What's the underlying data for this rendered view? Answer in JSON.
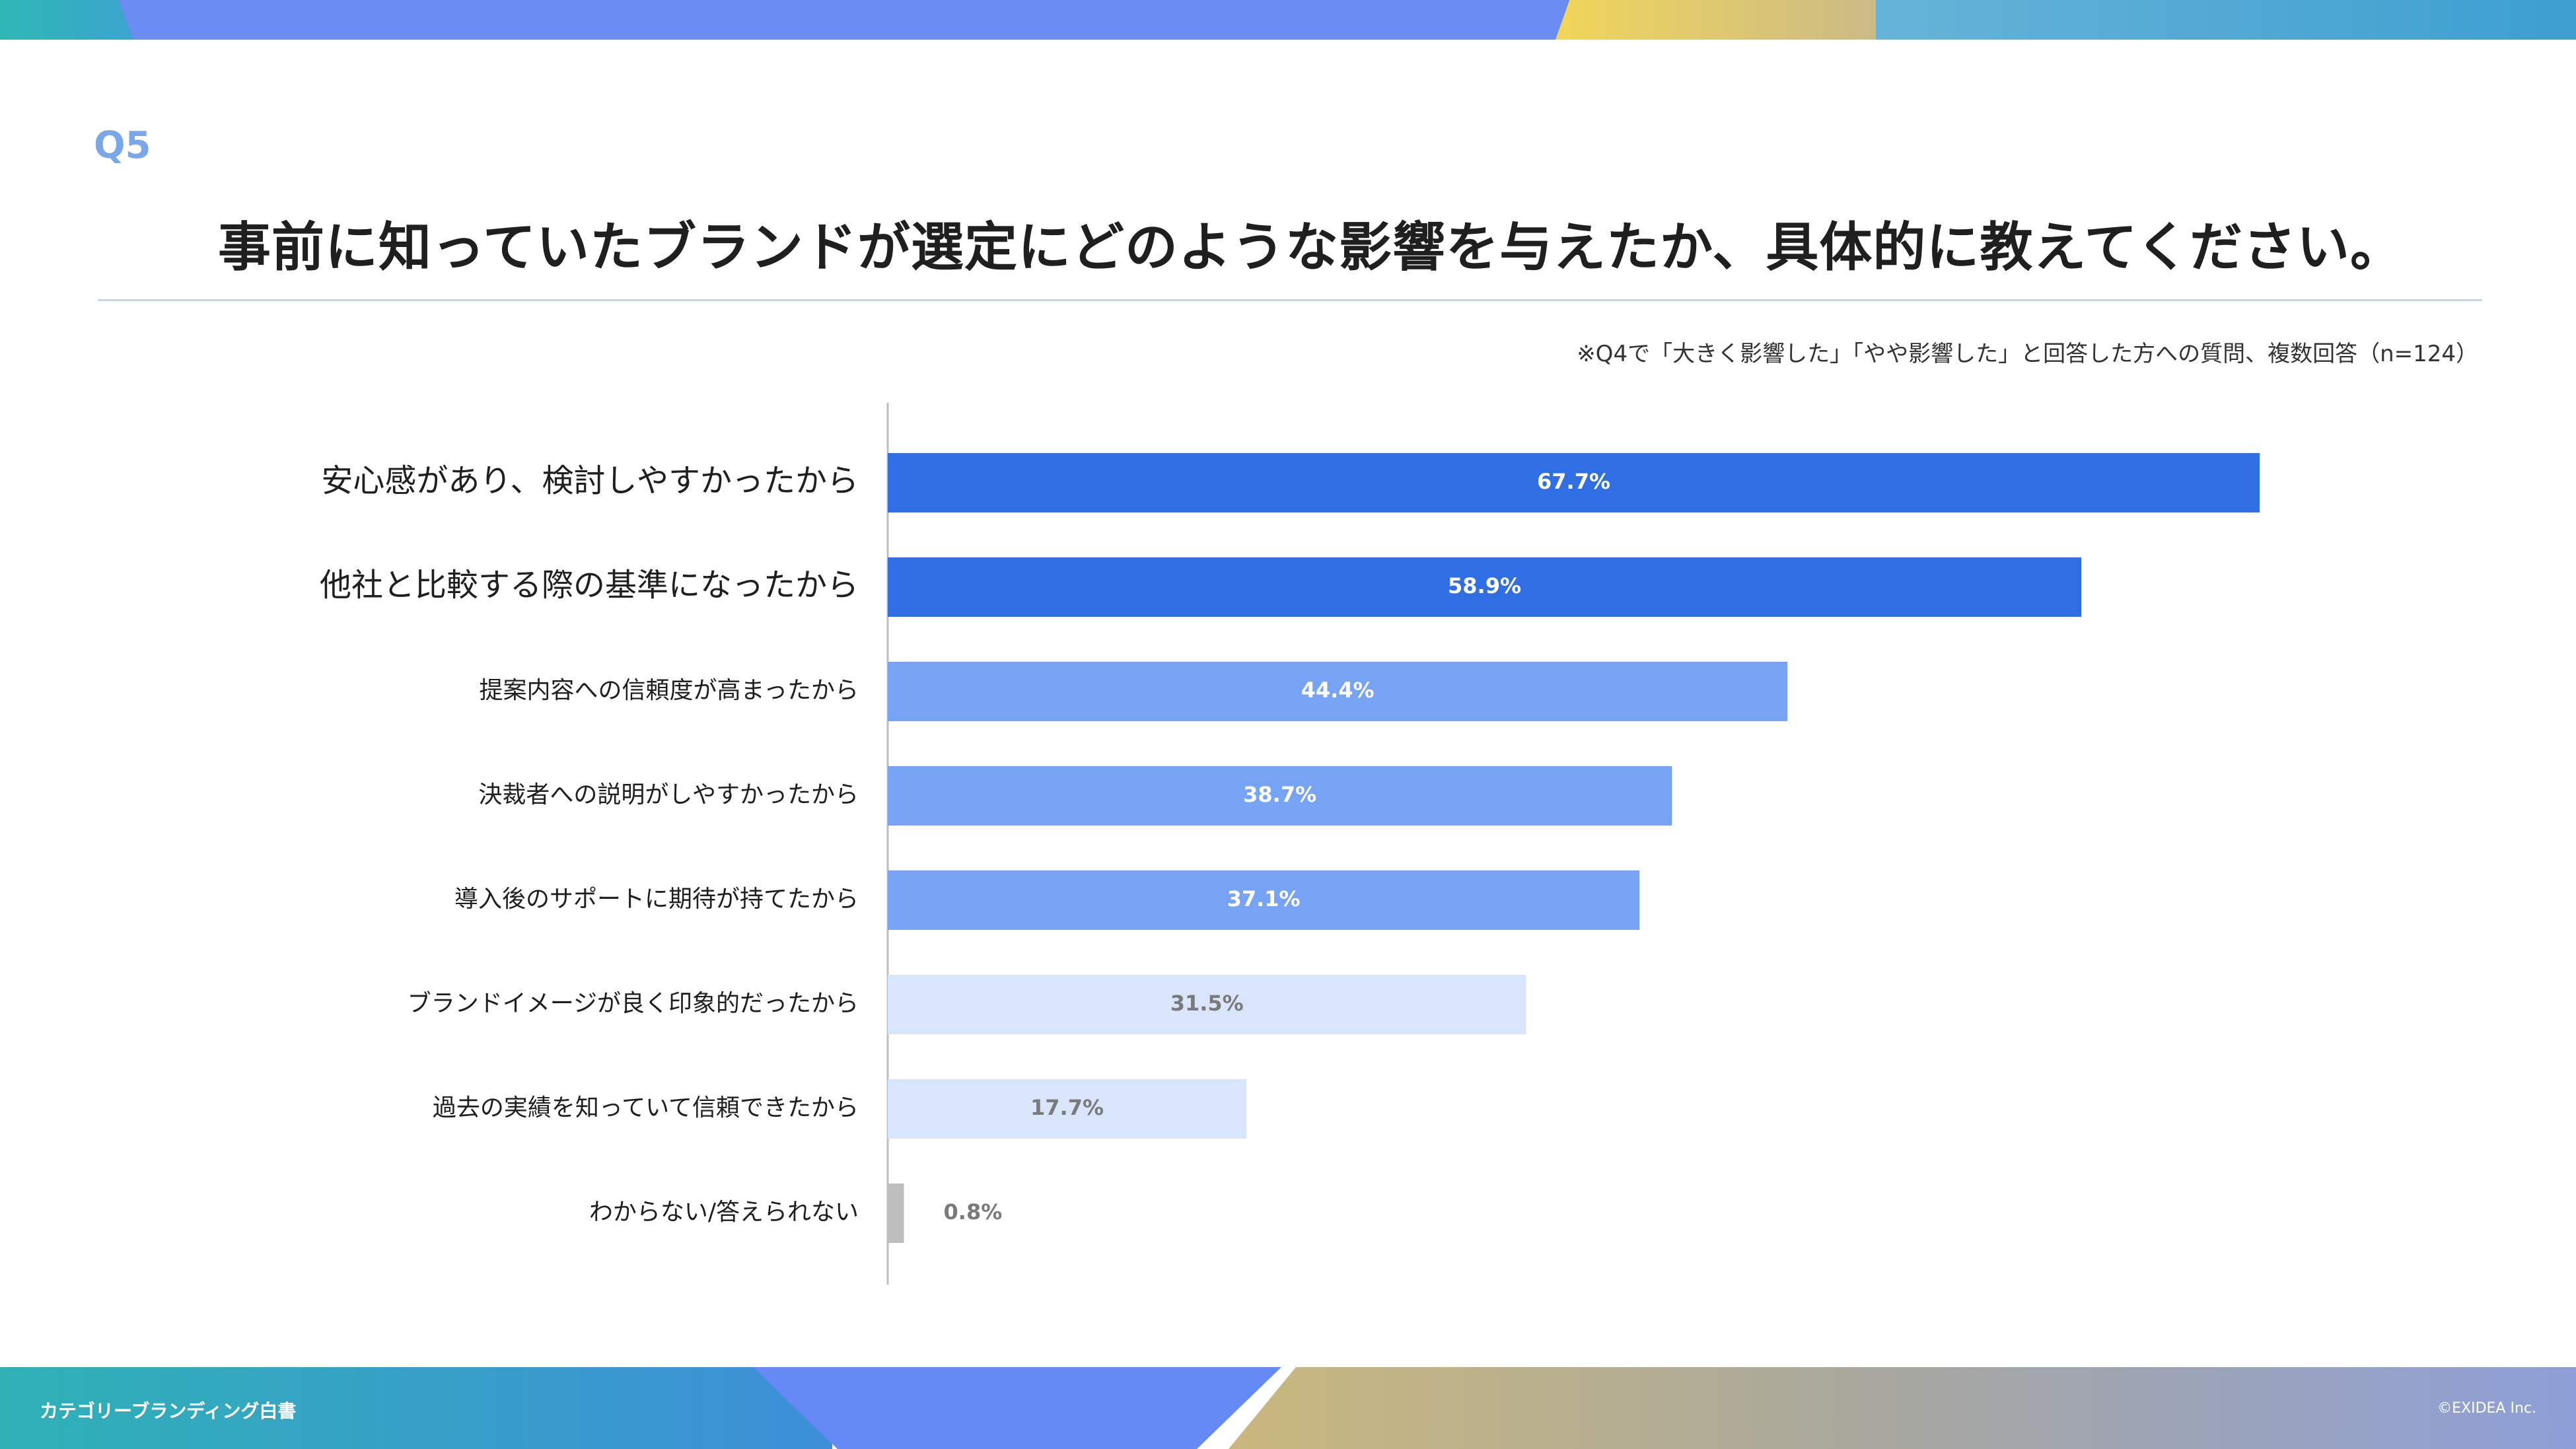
{
  "page": {
    "question": "Q5",
    "title": "事前に知っていたブランドが選定にどのような影響を与えたか、具体的に教えてください。",
    "note": "※Q4で「大きく影響した」「やや影響した」と回答した方への質問、複数回答（n=124）",
    "footer_left": "カテゴリーブランディング白書",
    "footer_right": "©EXIDEA Inc."
  },
  "colors": {
    "dark_blue": "#2f6fe3",
    "mid_blue": "#76a3f4",
    "light_blue": "#d9e5fb",
    "gray": "#bdbdbd"
  },
  "chart_data": {
    "type": "bar",
    "orientation": "horizontal",
    "unit": "%",
    "xlim": [
      0,
      100
    ],
    "grid": false,
    "categories": [
      "安心感があり、検討しやすかったから",
      "他社と比較する際の基準になったから",
      "提案内容への信頼度が高まったから",
      "決裁者への説明がしやすかったから",
      "導入後のサポートに期待が持てたから",
      "ブランドイメージが良く印象的だったから",
      "過去の実績を知っていて信頼できたから",
      "わからない/答えられない"
    ],
    "values": [
      67.7,
      58.9,
      44.4,
      38.7,
      37.1,
      31.5,
      17.7,
      0.8
    ],
    "labels": [
      "67.7%",
      "58.9%",
      "44.4%",
      "38.7%",
      "37.1%",
      "31.5%",
      "17.7%",
      "0.8%"
    ]
  }
}
